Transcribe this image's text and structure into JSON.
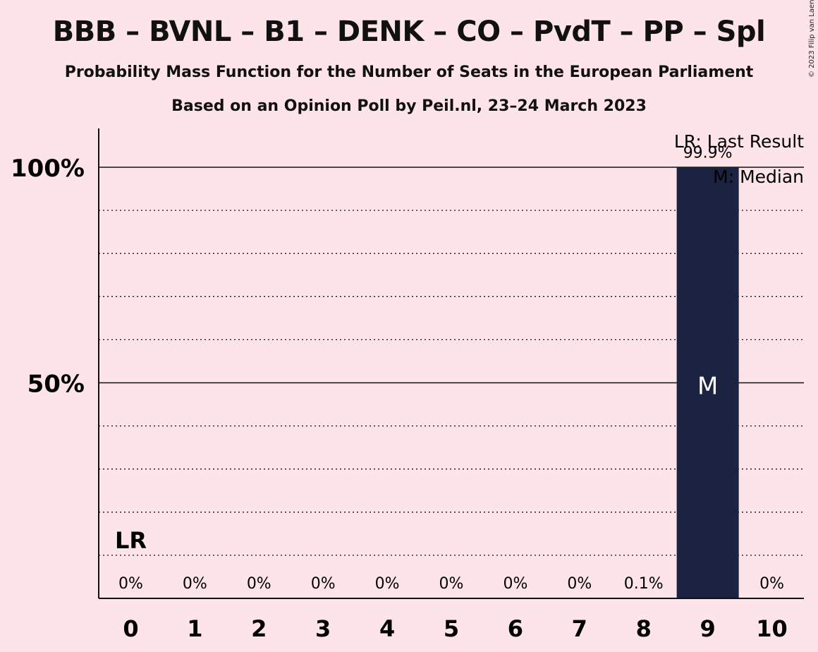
{
  "chart_data": {
    "type": "bar",
    "title": "BBB – BVNL – B1 – DENK – CO – PvdT – PP – Spl",
    "subtitle": "Probability Mass Function for the Number of Seats in the European Parliament",
    "subtitle2": "Based on an Opinion Poll by Peil.nl, 23–24 March 2023",
    "copyright": "© 2023 Filip van Laenen",
    "categories": [
      "0",
      "1",
      "2",
      "3",
      "4",
      "5",
      "6",
      "7",
      "8",
      "9",
      "10"
    ],
    "values": [
      0,
      0,
      0,
      0,
      0,
      0,
      0,
      0,
      0.1,
      99.9,
      0
    ],
    "value_labels": [
      "0%",
      "0%",
      "0%",
      "0%",
      "0%",
      "0%",
      "0%",
      "0%",
      "0.1%",
      "99.9%",
      "0%"
    ],
    "ylim": [
      0,
      100
    ],
    "y_ticks": [
      {
        "value": 50,
        "label": "50%"
      },
      {
        "value": 100,
        "label": "100%"
      }
    ],
    "minor_gridlines": [
      10,
      20,
      30,
      40,
      60,
      70,
      80,
      90
    ],
    "last_result_index": 0,
    "last_result_marker": "LR",
    "median_index": 9,
    "median_marker": "M",
    "legend": [
      "LR: Last Result",
      "M: Median"
    ],
    "legend_position": "top-right",
    "colors": {
      "bar": "#1c2340",
      "background": "#fce4e8",
      "median_text": "#ffffff"
    }
  }
}
